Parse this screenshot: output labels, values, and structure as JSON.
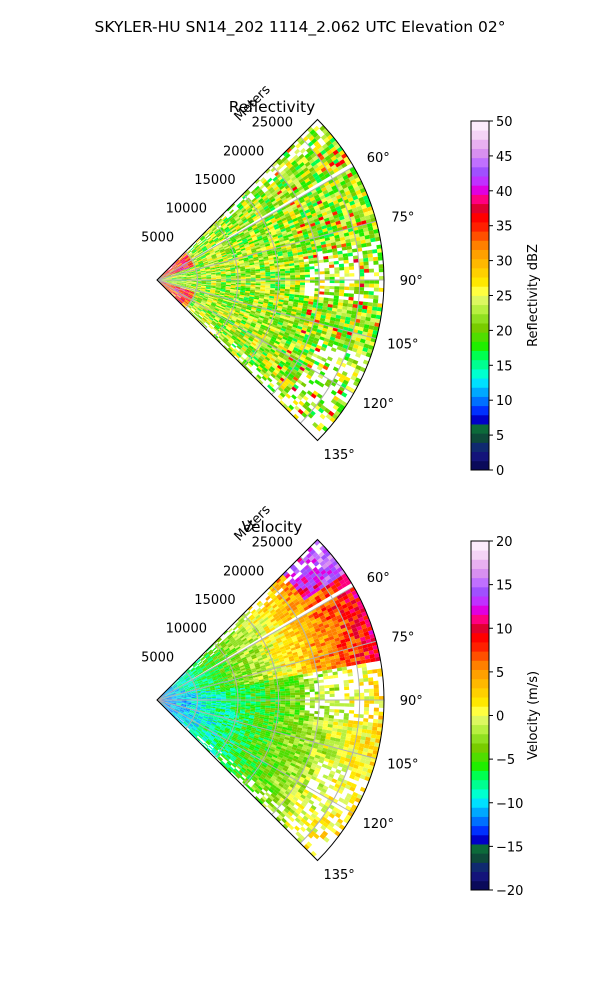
{
  "figure": {
    "title": "SKYLER-HU  SN14_202  1114_2.062 UTC Elevation 02°"
  },
  "chart_data": [
    {
      "type": "heatmap",
      "title": "Reflectivity",
      "projection": "polar-sector",
      "theta_range_deg": [
        45,
        135
      ],
      "theta_ticks": [
        60,
        75,
        90,
        105,
        120,
        135
      ],
      "theta_tick_labels": [
        "60°",
        "75°",
        "90°",
        "105°",
        "120°",
        "135°"
      ],
      "r_range": [
        0,
        28000
      ],
      "r_ticks": [
        5000,
        10000,
        15000,
        20000,
        25000
      ],
      "r_tick_labels": [
        "5000",
        "10000",
        "15000",
        "20000",
        "25000"
      ],
      "r_label": "Meters",
      "grid": true,
      "colorbar": {
        "label": "Reflectivity dBZ",
        "range": [
          0,
          50
        ],
        "ticks": [
          0,
          5,
          10,
          15,
          20,
          25,
          30,
          35,
          40,
          45,
          50
        ],
        "tick_labels": [
          "0",
          "5",
          "10",
          "15",
          "20",
          "25",
          "30",
          "35",
          "40",
          "45",
          "50"
        ]
      }
    },
    {
      "type": "heatmap",
      "title": "Velocity",
      "projection": "polar-sector",
      "theta_range_deg": [
        45,
        135
      ],
      "theta_ticks": [
        60,
        75,
        90,
        105,
        120,
        135
      ],
      "theta_tick_labels": [
        "60°",
        "75°",
        "90°",
        "105°",
        "120°",
        "135°"
      ],
      "r_range": [
        0,
        28000
      ],
      "r_ticks": [
        5000,
        10000,
        15000,
        20000,
        25000
      ],
      "r_tick_labels": [
        "5000",
        "10000",
        "15000",
        "20000",
        "25000"
      ],
      "r_label": "Meters",
      "grid": true,
      "colorbar": {
        "label": "Velocity (m/s)",
        "range": [
          -20,
          20
        ],
        "ticks": [
          -20,
          -15,
          -10,
          -5,
          0,
          5,
          10,
          15,
          20
        ],
        "tick_labels": [
          "−20",
          "−15",
          "−10",
          "−5",
          "0",
          "5",
          "10",
          "15",
          "20"
        ]
      }
    }
  ],
  "colormap": [
    "#0a0a5a",
    "#14147a",
    "#102a70",
    "#0e4a3a",
    "#0c6a3a",
    "#0000c8",
    "#0030ff",
    "#0070ff",
    "#00a8ff",
    "#00e0ff",
    "#00ffd0",
    "#00ff90",
    "#00ff50",
    "#20ee00",
    "#50dd00",
    "#78cc00",
    "#90e020",
    "#b8f040",
    "#ddf860",
    "#ffff40",
    "#ffe800",
    "#ffd000",
    "#ffb800",
    "#ffa000",
    "#ff8000",
    "#ff5000",
    "#ff2000",
    "#ff0000",
    "#e00030",
    "#ff0080",
    "#e000e0",
    "#c030ff",
    "#a050ff",
    "#c070ff",
    "#d890f0",
    "#e8b0f0",
    "#f4d4f6",
    "#fcecfc"
  ]
}
